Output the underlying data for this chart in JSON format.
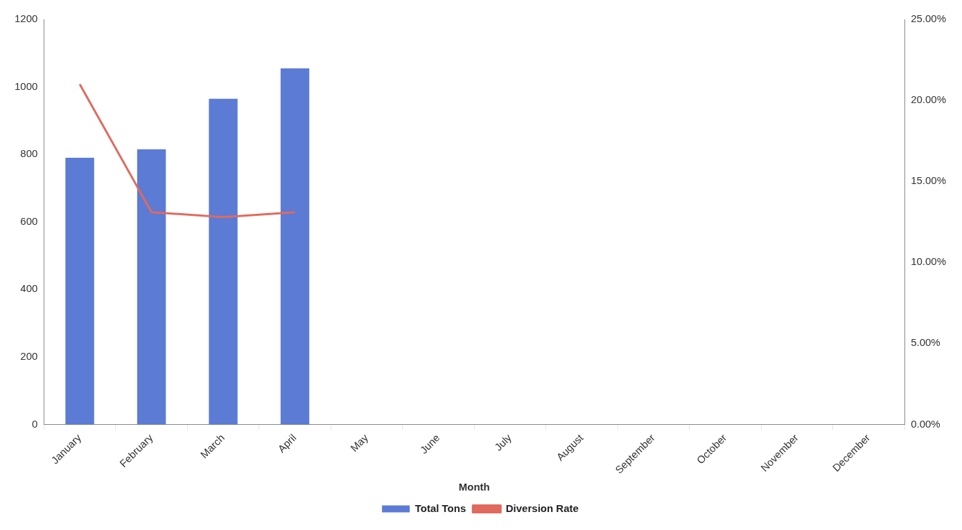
{
  "chart_data": {
    "type": "bar",
    "xlabel": "Month",
    "categories": [
      "January",
      "February",
      "March",
      "April",
      "May",
      "June",
      "July",
      "August",
      "September",
      "October",
      "November",
      "December"
    ],
    "series": [
      {
        "name": "Total Tons",
        "color": "#5b7bd5",
        "values": [
          790,
          815,
          965,
          1055,
          null,
          null,
          null,
          null,
          null,
          null,
          null,
          null
        ]
      },
      {
        "name": "Diversion Rate",
        "type": "line",
        "axis": "y2",
        "color": "#e06a5e",
        "values": [
          21,
          13.1,
          12.8,
          13.1,
          null,
          null,
          null,
          null,
          null,
          null,
          null,
          null
        ]
      }
    ],
    "ylim": [
      0,
      1200
    ],
    "yticks": [
      0,
      200,
      400,
      600,
      800,
      1000,
      1200
    ],
    "y2lim": [
      0,
      25
    ],
    "y2ticks": [
      {
        "value": 0,
        "label": "0.00%"
      },
      {
        "value": 5,
        "label": "5.00%"
      },
      {
        "value": 10,
        "label": "10.00%"
      },
      {
        "value": 15,
        "label": "15.00%"
      },
      {
        "value": 20,
        "label": "20.00%"
      },
      {
        "value": 25,
        "label": "25.00%"
      }
    ],
    "grid": false,
    "legend": "bottom",
    "marker": "none"
  }
}
